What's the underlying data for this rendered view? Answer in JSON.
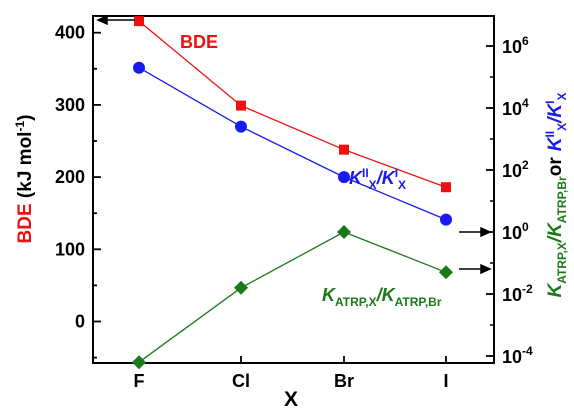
{
  "chart_data": {
    "type": "line",
    "xlabel": "X",
    "categories": [
      "F",
      "Cl",
      "Br",
      "I"
    ],
    "left_axis": {
      "label_prefix": "BDE",
      "label_rest": " (kJ mol",
      "label_sup": "-1",
      "label_end": ")",
      "ylim": [
        -60,
        420
      ],
      "ticks": [
        "0",
        "100",
        "200",
        "300",
        "400"
      ]
    },
    "right_axis": {
      "scale": "log",
      "ticks": [
        {
          "base": "10",
          "exp": "-4"
        },
        {
          "base": "10",
          "exp": "-2"
        },
        {
          "base": "10",
          "exp": "0"
        },
        {
          "base": "10",
          "exp": "2"
        },
        {
          "base": "10",
          "exp": "4"
        },
        {
          "base": "10",
          "exp": "6"
        }
      ],
      "label_or": "or"
    },
    "series": [
      {
        "label": "BDE",
        "axis": "left",
        "color": "#ee1111",
        "marker": "square",
        "values": [
          416,
          299,
          238,
          186
        ]
      },
      {
        "label_parts": {
          "k1": "K",
          "sup1": "II",
          "sub1": "X",
          "slash": "/",
          "k2": "K",
          "sup2": "I",
          "sub2": "X"
        },
        "axis": "right",
        "color": "#1a1aee",
        "marker": "circle",
        "log_values": [
          5.3,
          3.4,
          1.77,
          0.4
        ]
      },
      {
        "label_parts": {
          "k1": "K",
          "sub1": "ATRP,X",
          "slash": "/",
          "k2": "K",
          "sub2": "ATRP,Br"
        },
        "axis": "right",
        "color": "#1a7a1a",
        "marker": "diamond",
        "log_values": [
          -4.2,
          -1.8,
          0,
          -1.3
        ]
      }
    ]
  }
}
